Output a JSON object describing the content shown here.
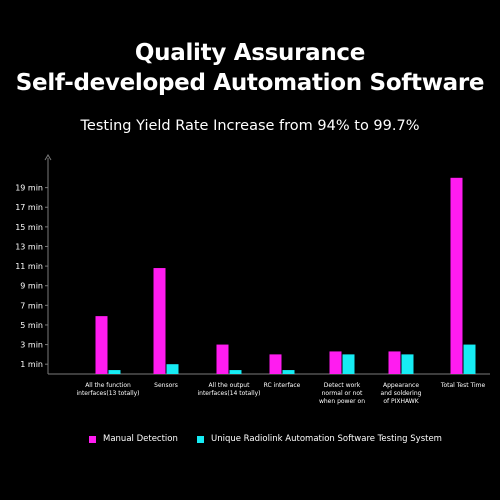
{
  "header": {
    "title_line1": "Quality Assurance",
    "title_line2": "Self-developed Automation Software",
    "subtitle": "Testing Yield Rate Increase from 94% to 99.7%"
  },
  "colors": {
    "background": "#000000",
    "manual": "#ff1cf0",
    "automation": "#16ecf4",
    "axis": "#7a7a7a",
    "text": "#ffffff"
  },
  "chart_data": {
    "type": "bar",
    "title": "Testing Yield Rate Increase from 94% to 99.7%",
    "xlabel": "",
    "ylabel": "",
    "ylim": [
      0,
      21
    ],
    "yticks": [
      1,
      3,
      5,
      7,
      9,
      11,
      13,
      15,
      17,
      19
    ],
    "ytick_labels": [
      "1 min",
      "3 min",
      "5 min",
      "7 min",
      "9 min",
      "11 min",
      "13 min",
      "15 min",
      "17 min",
      "19 min"
    ],
    "grid": false,
    "legend_position": "bottom",
    "categories": [
      [
        "All the function",
        "interfaces(13 totally)"
      ],
      [
        "Sensors"
      ],
      [
        "All the output",
        "interfaces(14 totally)"
      ],
      [
        "RC interface"
      ],
      [
        "Detect work",
        "normal or not",
        "when power on"
      ],
      [
        "Appearance",
        "and soldering",
        "of PIXHAWK"
      ],
      [
        "Total Test Time"
      ]
    ],
    "series": [
      {
        "name": "Manual Detection",
        "color": "#ff1cf0",
        "values": [
          5.9,
          10.8,
          3.0,
          2.0,
          2.3,
          2.3,
          20.0
        ]
      },
      {
        "name": "Unique Radiolink Automation Software Testing System",
        "color": "#16ecf4",
        "values": [
          0.4,
          1.0,
          0.4,
          0.4,
          2.0,
          2.0,
          3.0
        ]
      }
    ]
  }
}
